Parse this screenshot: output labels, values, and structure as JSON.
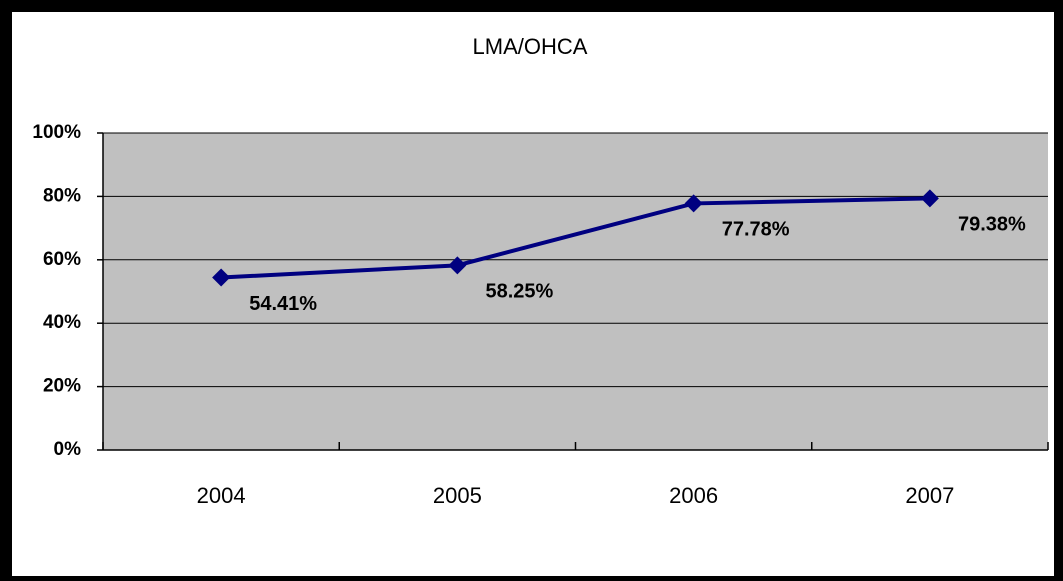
{
  "chart_data": {
    "type": "line",
    "title": "LMA/OHCA",
    "categories": [
      "2004",
      "2005",
      "2006",
      "2007"
    ],
    "series": [
      {
        "name": "LMA/OHCA",
        "color": "#000080",
        "values": [
          54.41,
          58.25,
          77.78,
          79.38
        ],
        "value_labels": [
          "54.41%",
          "58.25%",
          "77.78%",
          "79.38%"
        ]
      }
    ],
    "ylim": [
      0,
      100
    ],
    "yticks": [
      {
        "value": 0,
        "label": "0%"
      },
      {
        "value": 20,
        "label": "20%"
      },
      {
        "value": 40,
        "label": "40%"
      },
      {
        "value": 60,
        "label": "60%"
      },
      {
        "value": 80,
        "label": "80%"
      },
      {
        "value": 100,
        "label": "100%"
      }
    ],
    "grid": true,
    "plot_background": "#c0c0c0"
  }
}
